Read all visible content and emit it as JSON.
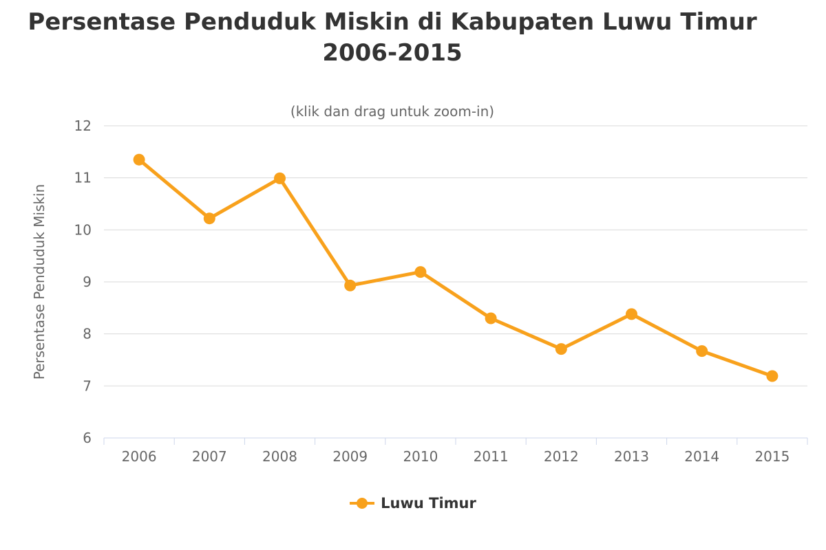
{
  "page": {
    "background": "#ffffff"
  },
  "chart_data": {
    "type": "line",
    "title": "Persentase Penduduk Miskin di Kabupaten Luwu Timur 2006-2015",
    "subtitle": "(klik dan drag untuk zoom-in)",
    "categories": [
      "2006",
      "2007",
      "2008",
      "2009",
      "2010",
      "2011",
      "2012",
      "2013",
      "2014",
      "2015"
    ],
    "series": [
      {
        "name": "Luwu Timur",
        "color": "#F8A11C",
        "values": [
          11.35,
          10.22,
          10.99,
          8.93,
          9.19,
          8.3,
          7.71,
          8.38,
          7.67,
          7.19
        ]
      }
    ],
    "xlabel": "",
    "ylabel": "Persentase Penduduk Miskin",
    "ylim": [
      6,
      12
    ],
    "ytick_step": 1,
    "yticks": [
      6,
      7,
      8,
      9,
      10,
      11,
      12
    ],
    "grid": true,
    "legend_position": "bottom",
    "colors": {
      "title": "#333333",
      "subtitle": "#666666",
      "grid_line": "#D9D9D9",
      "axis_line": "#CCD6EB",
      "axis_label": "#666666",
      "axis_title": "#666666",
      "legend_text": "#333333"
    }
  }
}
